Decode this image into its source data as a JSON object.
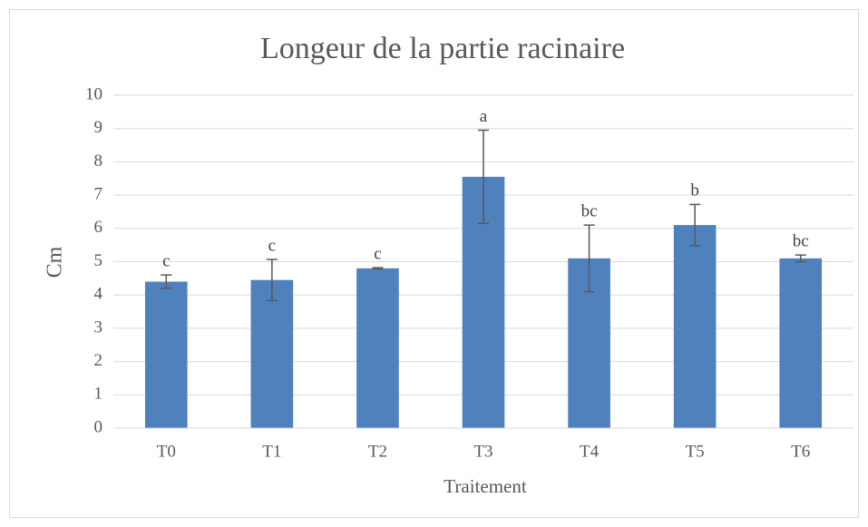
{
  "chart_data": {
    "type": "bar",
    "title": "Longeur de la partie racinaire",
    "x_label": "Traitement",
    "y_label": "Cm",
    "categories": [
      "T0",
      "T1",
      "T2",
      "T3",
      "T4",
      "T5",
      "T6"
    ],
    "values": [
      4.4,
      4.45,
      4.8,
      7.55,
      5.1,
      6.1,
      5.1
    ],
    "errors": [
      0.2,
      0.62,
      0.02,
      1.4,
      1.0,
      0.62,
      0.1
    ],
    "letters": [
      "c",
      "c",
      "c",
      "a",
      "bc",
      "b",
      "bc"
    ],
    "color": "#4f81bd",
    "ylim": [
      0,
      10
    ],
    "yticks": [
      0,
      1,
      2,
      3,
      4,
      5,
      6,
      7,
      8,
      9,
      10
    ],
    "grid": true
  }
}
